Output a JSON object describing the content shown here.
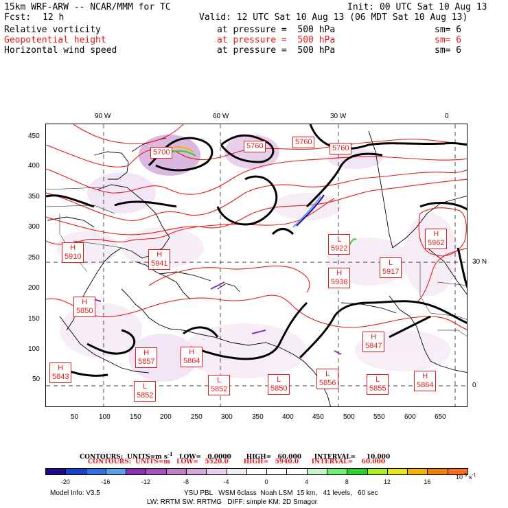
{
  "header": {
    "model_title": "15km WRF-ARW -- NCAR/MMM for TC",
    "init": "Init: 00 UTC Sat 10 Aug 13",
    "fcst_label": "Fcst:",
    "fcst_value": "12 h",
    "valid": "Valid: 12 UTC Sat 10 Aug 13 (06 MDT Sat 10 Aug 13)",
    "fields": [
      {
        "name": "Relative vorticity",
        "level": "at pressure =  500 hPa",
        "sm": "sm= 6",
        "color": "#000000"
      },
      {
        "name": "Geopotential height",
        "level": "at pressure =  500 hPa",
        "sm": "sm= 6",
        "color": "#e01b1b"
      },
      {
        "name": "Horizontal wind speed",
        "level": "at pressure =  500 hPa",
        "sm": "sm= 6",
        "color": "#000000"
      }
    ]
  },
  "axes": {
    "top_labels": [
      "90 W",
      "60 W",
      "30 W",
      "0"
    ],
    "right_labels": [
      "30 N",
      "0"
    ],
    "y_ticks": [
      "450",
      "400",
      "350",
      "300",
      "250",
      "200",
      "150",
      "100",
      "50"
    ],
    "x_ticks": [
      "50",
      "100",
      "150",
      "200",
      "250",
      "300",
      "350",
      "400",
      "450",
      "500",
      "550",
      "600",
      "650"
    ]
  },
  "map_labels": [
    {
      "kind": "H",
      "value": "5910"
    },
    {
      "kind": "H",
      "value": "5941"
    },
    {
      "kind": "H",
      "value": "5962"
    },
    {
      "kind": "L",
      "value": "5917"
    },
    {
      "kind": "H",
      "value": "5938"
    },
    {
      "kind": "L",
      "value": "5922"
    },
    {
      "kind": "H",
      "value": "5850"
    },
    {
      "kind": "H",
      "value": "5843"
    },
    {
      "kind": "H",
      "value": "5857"
    },
    {
      "kind": "H",
      "value": "5864"
    },
    {
      "kind": "L",
      "value": "5852"
    },
    {
      "kind": "L",
      "value": "5852"
    },
    {
      "kind": "L",
      "value": "5850"
    },
    {
      "kind": "L",
      "value": "5856"
    },
    {
      "kind": "L",
      "value": "5855"
    },
    {
      "kind": "H",
      "value": "5864"
    },
    {
      "kind": "H",
      "value": "5847"
    },
    {
      "kind": "",
      "value": "5760"
    },
    {
      "kind": "",
      "value": "5760"
    },
    {
      "kind": "",
      "value": "5760"
    },
    {
      "kind": "",
      "value": "5700"
    }
  ],
  "contour_info": {
    "line1": "CONTOURS:  UNITS=m s",
    "line1_sup": "-1",
    "line1_rest": "   LOW=   0.0000       HIGH=   60.000      INTERVAL=     10.000",
    "line2": "CONTOURS:  UNITS=m   LOW=   5520.0       HIGH=   5940.0      INTERVAL=    60.000"
  },
  "colorbar": {
    "colors": [
      "#1a0a8c",
      "#1a3fd0",
      "#2f6fe8",
      "#5aa0f0",
      "#8a2fb8",
      "#a552c0",
      "#bf7fcc",
      "#d6a8dc",
      "#e8d0ee",
      "#f4ecf7",
      "#ffffff",
      "#ffffff",
      "#ffffff",
      "#c8f5c8",
      "#6fee6f",
      "#28d628",
      "#a8f020",
      "#e6e61a",
      "#f5b400",
      "#f08000",
      "#ff6a1a"
    ],
    "labels": [
      "-20",
      "-16",
      "-12",
      "-8",
      "-4",
      "0",
      "4",
      "8",
      "12",
      "16"
    ],
    "units": "10",
    "units_sup": "-5",
    "units_rest": " s",
    "units_sup2": "-1"
  },
  "footer": {
    "model_info": "Model Info: V3.5",
    "line1": "YSU PBL   WSM 6class  Noah LSM  15 km,   41 levels,   60 sec",
    "line2": "LW: RRTM SW: RRTMG   DIFF: simple KM: 2D Smagor"
  }
}
